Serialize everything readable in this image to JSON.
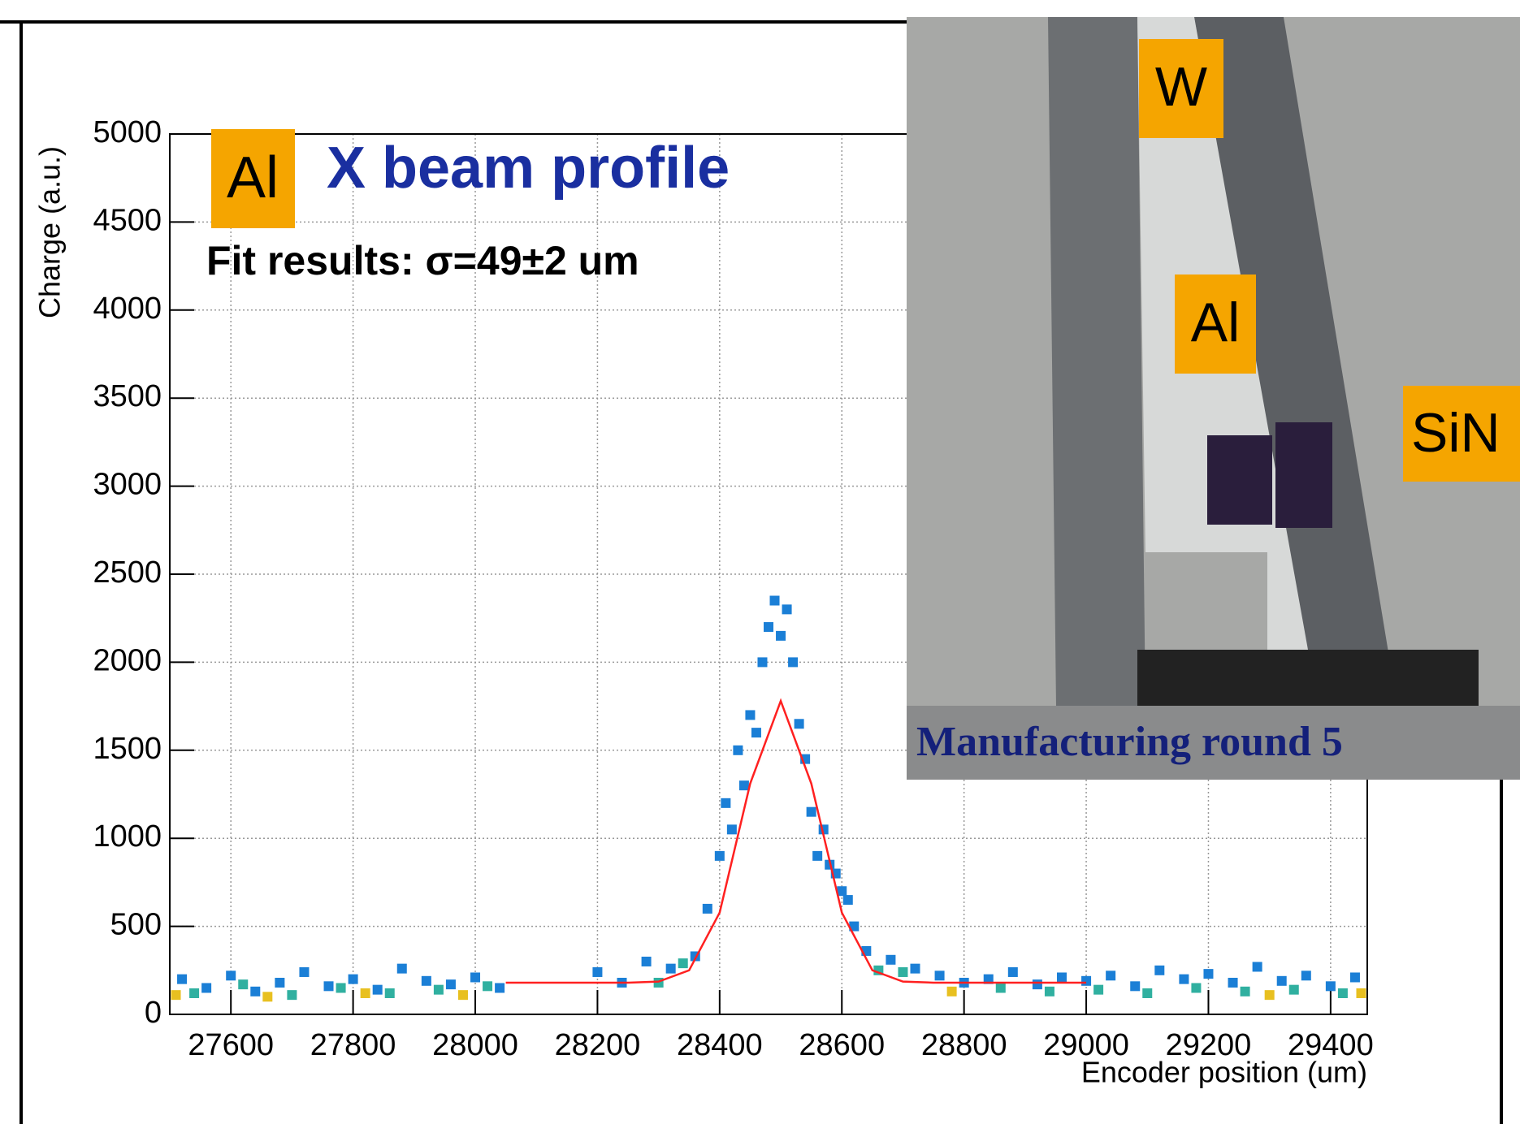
{
  "chart_data": {
    "type": "scatter",
    "title": "X beam profile",
    "tag": "Al",
    "annotation": "Fit results: σ=49±2 um",
    "x_label": "Encoder position (um)",
    "y_label": "Charge (a.u.)",
    "xlim": [
      27500,
      29460
    ],
    "ylim": [
      0,
      5000
    ],
    "xticks": [
      27600,
      27800,
      28000,
      28200,
      28400,
      28600,
      28800,
      29000,
      29200,
      29400
    ],
    "yticks": [
      0,
      500,
      1000,
      1500,
      2000,
      2500,
      3000,
      3500,
      4000,
      4500,
      5000
    ],
    "grid": true,
    "points": [
      {
        "color": "#1b7fd6",
        "x": [
          27520,
          27560,
          27600,
          27640,
          27680,
          27720,
          27760,
          27800,
          27840,
          27880,
          27920,
          27960,
          28000,
          28040,
          28200,
          28240,
          28280,
          28320,
          28360,
          28640,
          28680,
          28720,
          28760,
          28800,
          28840,
          28880,
          28920,
          28960,
          29000,
          29040,
          29080,
          29120,
          29160,
          29200,
          29240,
          29280,
          29320,
          29360,
          29400,
          29440,
          28380,
          28400,
          28410,
          28420,
          28430,
          28440,
          28450,
          28460,
          28470,
          28480,
          28490,
          28500,
          28510,
          28520,
          28530,
          28540,
          28550,
          28560,
          28570,
          28580,
          28590,
          28600,
          28610,
          28620
        ],
        "y": [
          200,
          150,
          220,
          130,
          180,
          240,
          160,
          200,
          140,
          260,
          190,
          170,
          210,
          150,
          240,
          180,
          300,
          260,
          330,
          360,
          310,
          260,
          220,
          180,
          200,
          240,
          170,
          210,
          190,
          220,
          160,
          250,
          200,
          230,
          180,
          270,
          190,
          220,
          160,
          210,
          600,
          900,
          1200,
          1050,
          1500,
          1300,
          1700,
          1600,
          2000,
          2200,
          2350,
          2150,
          2300,
          2000,
          1650,
          1450,
          1150,
          900,
          1050,
          850,
          800,
          700,
          650,
          500
        ]
      },
      {
        "color": "#30b0a0",
        "x": [
          27540,
          27620,
          27700,
          27780,
          27860,
          27940,
          28020,
          28300,
          28340,
          28660,
          28700,
          28860,
          28940,
          29020,
          29100,
          29180,
          29260,
          29340,
          29420
        ],
        "y": [
          120,
          170,
          110,
          150,
          120,
          140,
          160,
          180,
          290,
          250,
          240,
          150,
          130,
          140,
          120,
          150,
          130,
          140,
          120
        ]
      },
      {
        "color": "#e8c020",
        "x": [
          27510,
          27660,
          27820,
          27980,
          28780,
          29300,
          29450
        ],
        "y": [
          110,
          100,
          120,
          110,
          130,
          110,
          120
        ]
      }
    ],
    "fit": {
      "color": "#ff2020",
      "x": [
        28050,
        28100,
        28150,
        28200,
        28250,
        28300,
        28350,
        28400,
        28450,
        28500,
        28550,
        28600,
        28650,
        28700,
        28750,
        28800,
        28850,
        28900,
        28950,
        29000
      ],
      "y": [
        180,
        180,
        180,
        180,
        180,
        186,
        250,
        578,
        1311,
        1780,
        1311,
        578,
        250,
        186,
        180,
        180,
        180,
        180,
        180,
        180
      ]
    }
  },
  "inset": {
    "labels": [
      "W",
      "Al",
      "SiN"
    ],
    "caption": "Manufacturing round 5"
  }
}
